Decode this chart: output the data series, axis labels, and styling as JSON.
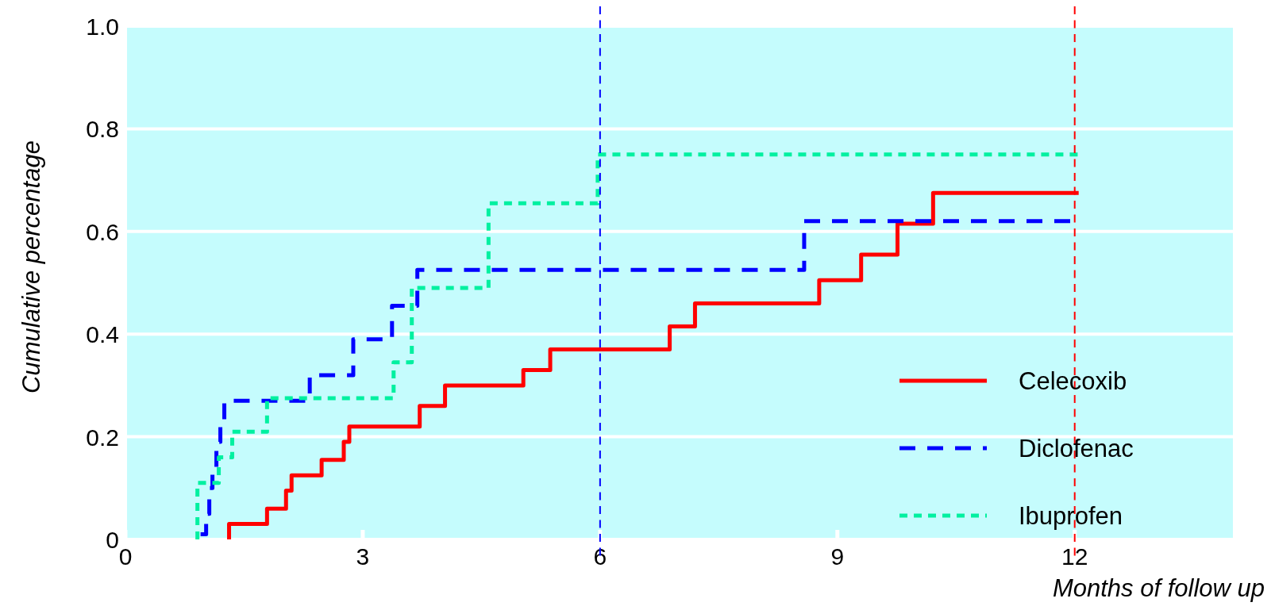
{
  "chart_data": {
    "type": "step",
    "xlabel": "Months of follow up",
    "ylabel": "Cumulative percentage",
    "xlim": [
      0,
      14
    ],
    "xticks": [
      0,
      3,
      6,
      9,
      12
    ],
    "ylim": [
      0,
      1
    ],
    "yticks": [
      0,
      0.2,
      0.4,
      0.6,
      0.8,
      {
        "value": 1,
        "label": "1.0"
      }
    ],
    "grid": "y",
    "legend": "bottom right",
    "series": [
      {
        "name": "Celecoxib",
        "color": "#ff0000",
        "line_style": "solid",
        "x": [
          1.31,
          1.31,
          1.79,
          2.03,
          2.1,
          2.48,
          2.76,
          2.83,
          3.72,
          4.04,
          5.03,
          5.37,
          6.88,
          7.2,
          8.77,
          9.3,
          9.76,
          10.21,
          12.05
        ],
        "values": [
          0,
          0.03,
          0.06,
          0.095,
          0.125,
          0.155,
          0.19,
          0.22,
          0.26,
          0.3,
          0.33,
          0.37,
          0.415,
          0.46,
          0.505,
          0.555,
          0.615,
          0.675,
          0.675
        ]
      },
      {
        "name": "Diclofenac",
        "color": "#0000ff",
        "line_style": "dashed",
        "x": [
          0.95,
          1.02,
          1.06,
          1.1,
          1.15,
          1.2,
          1.25,
          2.33,
          2.88,
          3.37,
          3.69,
          8.58,
          12
        ],
        "values": [
          0.01,
          0.05,
          0.1,
          0.14,
          0.19,
          0.23,
          0.27,
          0.32,
          0.39,
          0.455,
          0.525,
          0.62,
          0.62
        ]
      },
      {
        "name": "Ibuprofen",
        "color": "#00f0a0",
        "line_style": "dotted",
        "x": [
          0.91,
          0.91,
          1.18,
          1.35,
          1.79,
          3.39,
          3.62,
          4.59,
          5.97,
          12.05
        ],
        "values": [
          0,
          0.11,
          0.16,
          0.21,
          0.275,
          0.345,
          0.49,
          0.655,
          0.75,
          0.75
        ]
      }
    ],
    "ref_lines": [
      {
        "axis": "x",
        "value": 6,
        "color": "#0000ff",
        "line_style": "dashed"
      },
      {
        "axis": "x",
        "value": 12,
        "color": "#ff0000",
        "line_style": "dashed"
      }
    ]
  }
}
